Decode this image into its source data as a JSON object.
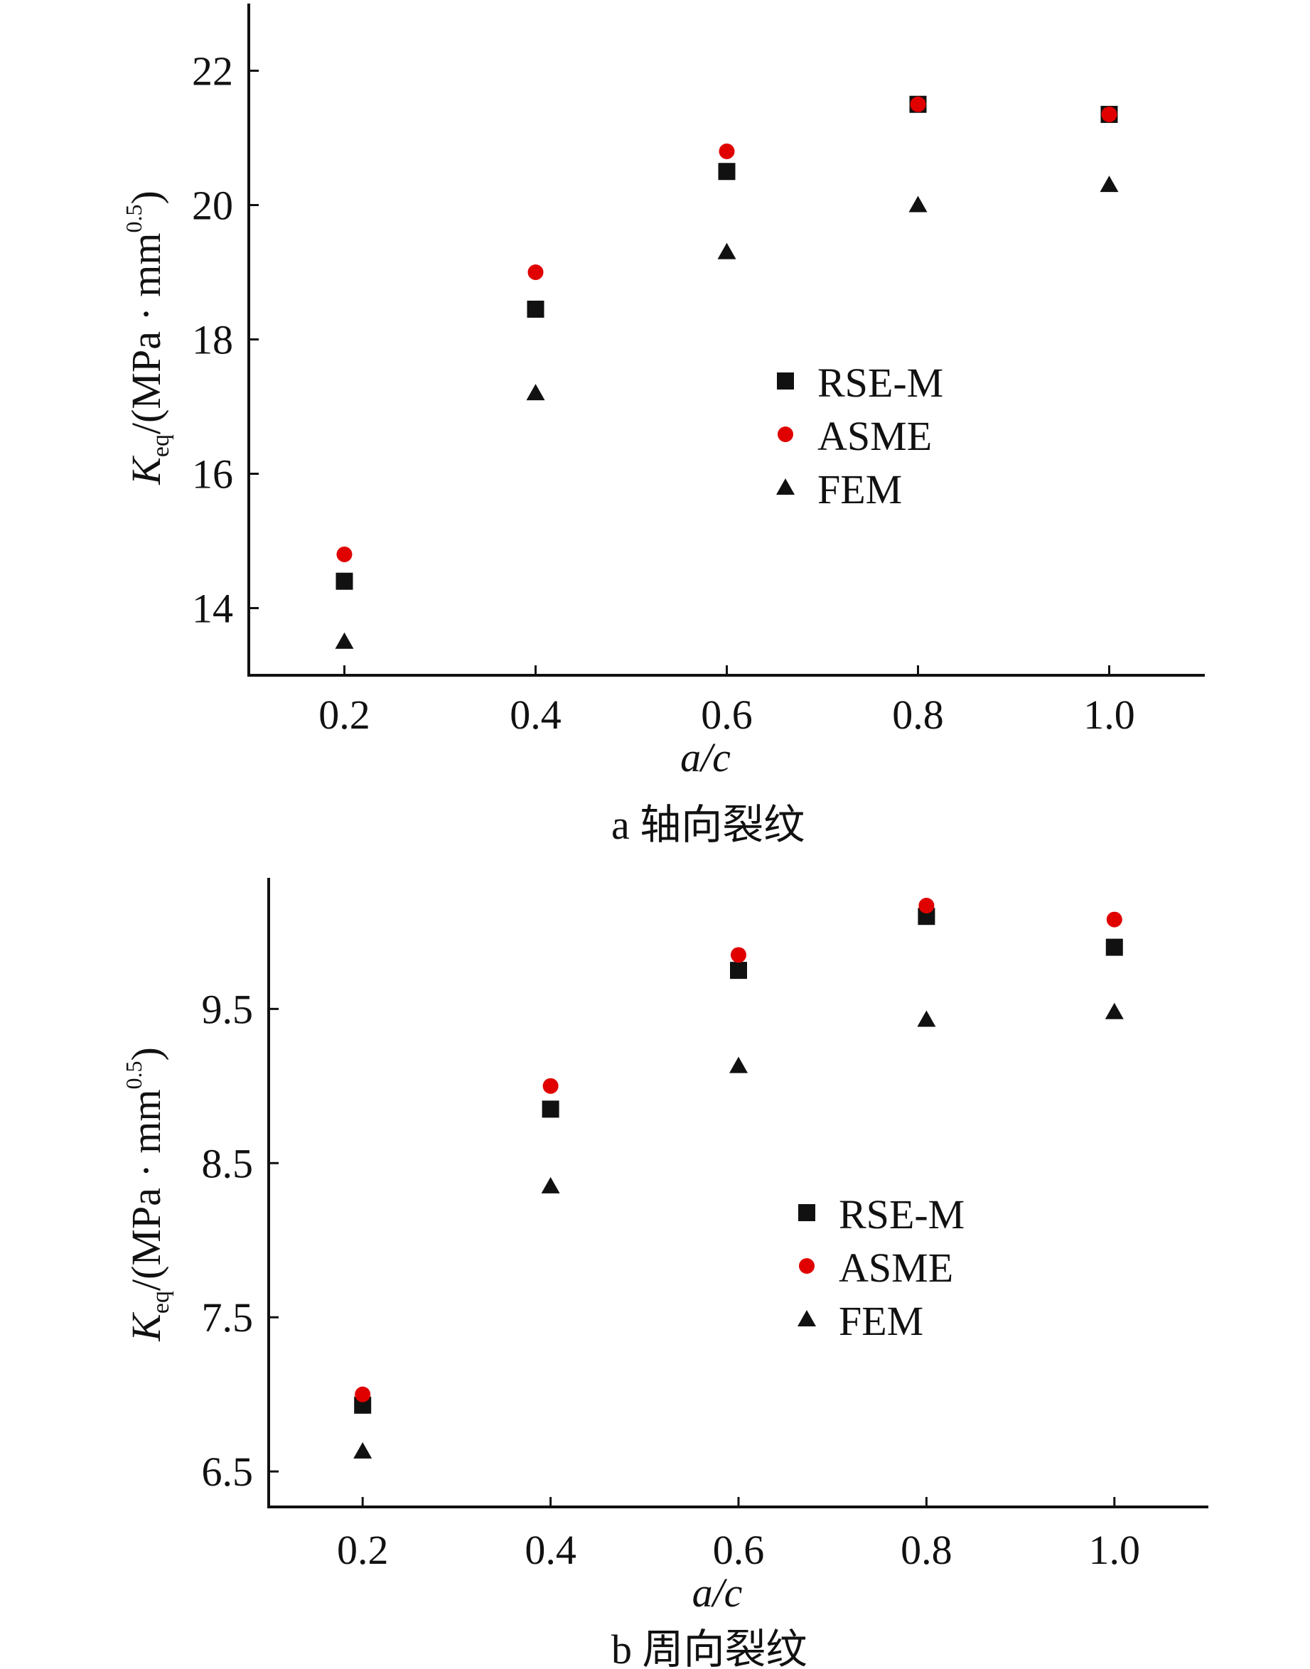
{
  "chart_data": [
    {
      "type": "scatter",
      "caption": "a  轴向裂纹",
      "xlabel": "a/c",
      "ylabel": {
        "main": "K",
        "sub": "eq",
        "unit": "/(MPa · mm",
        "sup": "0.5",
        "close": ")"
      },
      "xlim": [
        0.1,
        1.1
      ],
      "ylim": [
        13,
        23
      ],
      "x": [
        0.2,
        0.4,
        0.6,
        0.8,
        1.0
      ],
      "xticks": [
        "0.2",
        "0.4",
        "0.6",
        "0.8",
        "1.0"
      ],
      "yticks": [
        14,
        16,
        18,
        20,
        22
      ],
      "legend_position": "center-right",
      "series": [
        {
          "name": "RSE-M",
          "marker": "square",
          "color": "#111111",
          "values": [
            14.4,
            18.45,
            20.5,
            21.5,
            21.35
          ]
        },
        {
          "name": "ASME",
          "marker": "circle",
          "color": "#e00000",
          "values": [
            14.8,
            19.0,
            20.8,
            21.5,
            21.35
          ]
        },
        {
          "name": "FEM",
          "marker": "triangle",
          "color": "#111111",
          "values": [
            13.5,
            17.2,
            19.3,
            20.0,
            20.3
          ]
        }
      ]
    },
    {
      "type": "scatter",
      "caption": "b  周向裂纹",
      "xlabel": "a/c",
      "ylabel": {
        "main": "K",
        "sub": "eq",
        "unit": "/(MPa · mm",
        "sup": "0.5",
        "close": ")"
      },
      "xlim": [
        0.1,
        1.1
      ],
      "ylim": [
        6.27,
        10.35
      ],
      "x": [
        0.2,
        0.4,
        0.6,
        0.8,
        1.0
      ],
      "xticks": [
        "0.2",
        "0.4",
        "0.6",
        "0.8",
        "1.0"
      ],
      "yticks": [
        6.5,
        7.5,
        8.5,
        9.5
      ],
      "legend_position": "center-right",
      "series": [
        {
          "name": "RSE-M",
          "marker": "square",
          "color": "#111111",
          "values": [
            6.93,
            8.85,
            9.75,
            10.1,
            9.9
          ]
        },
        {
          "name": "ASME",
          "marker": "circle",
          "color": "#e00000",
          "values": [
            7.0,
            9.0,
            9.85,
            10.17,
            10.08
          ]
        },
        {
          "name": "FEM",
          "marker": "triangle",
          "color": "#111111",
          "values": [
            6.63,
            8.35,
            9.13,
            9.43,
            9.48
          ]
        }
      ]
    }
  ]
}
